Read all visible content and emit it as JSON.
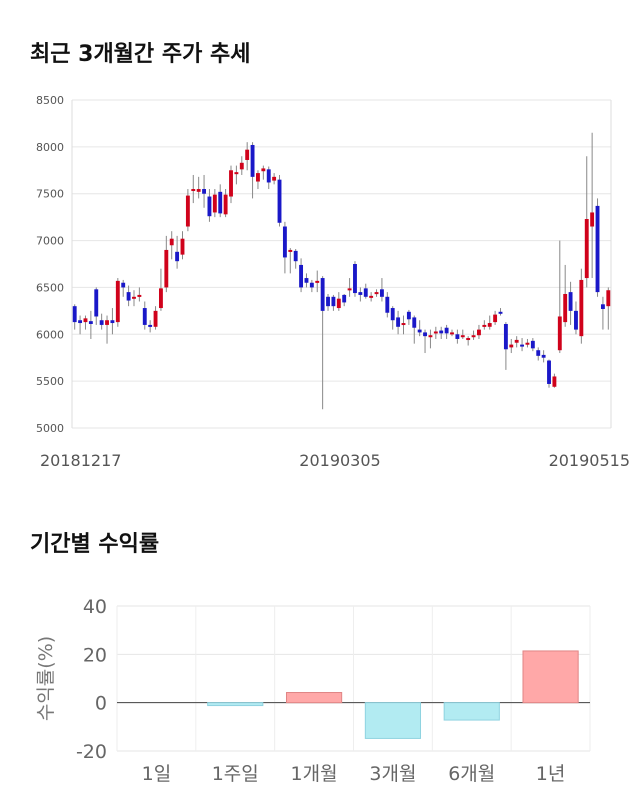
{
  "section1": {
    "title": "최근 3개월간 주가 추세"
  },
  "section2": {
    "title": "기간별 수익률"
  },
  "chart_data": [
    {
      "type": "candlestick",
      "title": "최근 3개월간 주가 추세",
      "ylim": [
        5000,
        8500
      ],
      "yticks": [
        "8500",
        "8000",
        "7500",
        "7000",
        "6500",
        "6000",
        "5500",
        "5000"
      ],
      "x_labels": [
        "20181217",
        "20190305",
        "20190515"
      ],
      "grid": true,
      "colors": {
        "up": "#d0021b",
        "down": "#1a18c8",
        "wick": "#888888"
      },
      "candles": [
        [
          6300,
          6130,
          6320,
          6050
        ],
        [
          6150,
          6120,
          6200,
          6000
        ],
        [
          6130,
          6170,
          6200,
          6050
        ],
        [
          6140,
          6110,
          6250,
          5950
        ],
        [
          6480,
          6190,
          6500,
          6100
        ],
        [
          6150,
          6100,
          6220,
          6050
        ],
        [
          6100,
          6150,
          6200,
          5900
        ],
        [
          6150,
          6120,
          6280,
          6000
        ],
        [
          6130,
          6570,
          6600,
          6080
        ],
        [
          6550,
          6500,
          6580,
          6400
        ],
        [
          6450,
          6360,
          6520,
          6300
        ],
        [
          6380,
          6400,
          6470,
          6300
        ],
        [
          6400,
          6420,
          6500,
          6350
        ],
        [
          6280,
          6100,
          6350,
          6050
        ],
        [
          6100,
          6080,
          6150,
          6020
        ],
        [
          6080,
          6250,
          6300,
          6050
        ],
        [
          6280,
          6490,
          6700,
          6250
        ],
        [
          6500,
          6900,
          7050,
          6450
        ],
        [
          6950,
          7020,
          7100,
          6800
        ],
        [
          6880,
          6780,
          7050,
          6700
        ],
        [
          6850,
          7020,
          7100,
          6800
        ],
        [
          7150,
          7480,
          7550,
          7100
        ],
        [
          7530,
          7550,
          7700,
          7400
        ],
        [
          7520,
          7550,
          7680,
          7450
        ],
        [
          7550,
          7500,
          7700,
          7350
        ],
        [
          7470,
          7260,
          7550,
          7200
        ],
        [
          7300,
          7490,
          7550,
          7250
        ],
        [
          7520,
          7290,
          7600,
          7250
        ],
        [
          7280,
          7490,
          7550,
          7250
        ],
        [
          7470,
          7750,
          7800,
          7400
        ],
        [
          7720,
          7730,
          7800,
          7600
        ],
        [
          7760,
          7830,
          7900,
          7700
        ],
        [
          7860,
          7970,
          8050,
          7750
        ],
        [
          8020,
          7680,
          8050,
          7450
        ],
        [
          7630,
          7720,
          7750,
          7550
        ],
        [
          7740,
          7770,
          7800,
          7650
        ],
        [
          7760,
          7620,
          7790,
          7550
        ],
        [
          7640,
          7680,
          7720,
          7600
        ],
        [
          7650,
          7190,
          7700,
          7150
        ],
        [
          7150,
          6820,
          7200,
          6650
        ],
        [
          6880,
          6900,
          6920,
          6650
        ],
        [
          6890,
          6780,
          6910,
          6700
        ],
        [
          6740,
          6500,
          6810,
          6450
        ],
        [
          6600,
          6550,
          6650,
          6500
        ],
        [
          6550,
          6500,
          6580,
          6450
        ],
        [
          6550,
          6570,
          6680,
          6450
        ],
        [
          6600,
          6250,
          6620,
          5200
        ],
        [
          6400,
          6300,
          6430,
          6250
        ],
        [
          6400,
          6300,
          6420,
          6250
        ],
        [
          6280,
          6380,
          6450,
          6250
        ],
        [
          6420,
          6340,
          6430,
          6300
        ],
        [
          6470,
          6490,
          6600,
          6400
        ],
        [
          6750,
          6440,
          6780,
          6400
        ],
        [
          6450,
          6420,
          6500,
          6350
        ],
        [
          6490,
          6400,
          6540,
          6380
        ],
        [
          6400,
          6410,
          6450,
          6350
        ],
        [
          6430,
          6450,
          6480,
          6400
        ],
        [
          6480,
          6400,
          6600,
          6350
        ],
        [
          6400,
          6230,
          6450,
          6180
        ],
        [
          6280,
          6150,
          6300,
          6050
        ],
        [
          6180,
          6080,
          6250,
          6000
        ],
        [
          6100,
          6120,
          6200,
          6000
        ],
        [
          6240,
          6160,
          6260,
          6100
        ],
        [
          6180,
          6070,
          6200,
          5900
        ],
        [
          6050,
          6020,
          6150,
          5980
        ],
        [
          6020,
          5980,
          6050,
          5800
        ],
        [
          5980,
          5990,
          6050,
          5850
        ],
        [
          6010,
          6030,
          6080,
          5950
        ],
        [
          6040,
          6010,
          6080,
          5950
        ],
        [
          6070,
          6010,
          6100,
          5950
        ],
        [
          6020,
          6020,
          6050,
          5980
        ],
        [
          6000,
          5950,
          6050,
          5900
        ],
        [
          5980,
          5990,
          6050,
          5950
        ],
        [
          5960,
          5960,
          5980,
          5880
        ],
        [
          5970,
          5990,
          6040,
          5940
        ],
        [
          5990,
          6050,
          6100,
          5950
        ],
        [
          6100,
          6100,
          6150,
          6050
        ],
        [
          6080,
          6120,
          6200,
          6050
        ],
        [
          6130,
          6210,
          6250,
          6100
        ],
        [
          6240,
          6230,
          6280,
          6200
        ],
        [
          6110,
          5840,
          6130,
          5620
        ],
        [
          5860,
          5890,
          5950,
          5800
        ],
        [
          5910,
          5940,
          5980,
          5860
        ],
        [
          5890,
          5880,
          5960,
          5820
        ],
        [
          5900,
          5910,
          5950,
          5860
        ],
        [
          5930,
          5850,
          5960,
          5820
        ],
        [
          5830,
          5770,
          5860,
          5720
        ],
        [
          5780,
          5750,
          5830,
          5700
        ],
        [
          5720,
          5470,
          5730,
          5430
        ],
        [
          5440,
          5550,
          5580,
          5430
        ],
        [
          5830,
          6190,
          7000,
          5800
        ],
        [
          6130,
          6430,
          6740,
          6080
        ],
        [
          6450,
          6250,
          6560,
          6100
        ],
        [
          6250,
          6050,
          6350,
          6000
        ],
        [
          5980,
          6580,
          6700,
          5900
        ],
        [
          6600,
          7230,
          7900,
          6500
        ],
        [
          7150,
          7300,
          8150,
          6600
        ],
        [
          7370,
          6450,
          7450,
          6400
        ],
        [
          6320,
          6270,
          6400,
          6050
        ],
        [
          6300,
          6470,
          6500,
          6050
        ]
      ]
    },
    {
      "type": "bar",
      "title": "기간별 수익률",
      "ylabel": "수익률(%)",
      "ylim": [
        -20,
        40
      ],
      "yticks": [
        "40",
        "20",
        "0",
        "-20"
      ],
      "grid": true,
      "categories": [
        "1일",
        "1주일",
        "1개월",
        "3개월",
        "6개월",
        "1년"
      ],
      "values": [
        0,
        -1.2,
        4.2,
        -14.8,
        -7.2,
        21.4
      ],
      "colors": {
        "positive": "#ffa8a8",
        "negative": "#b2ebf2",
        "positive_edge": "#e08585",
        "negative_edge": "#8fd3e0"
      }
    }
  ]
}
